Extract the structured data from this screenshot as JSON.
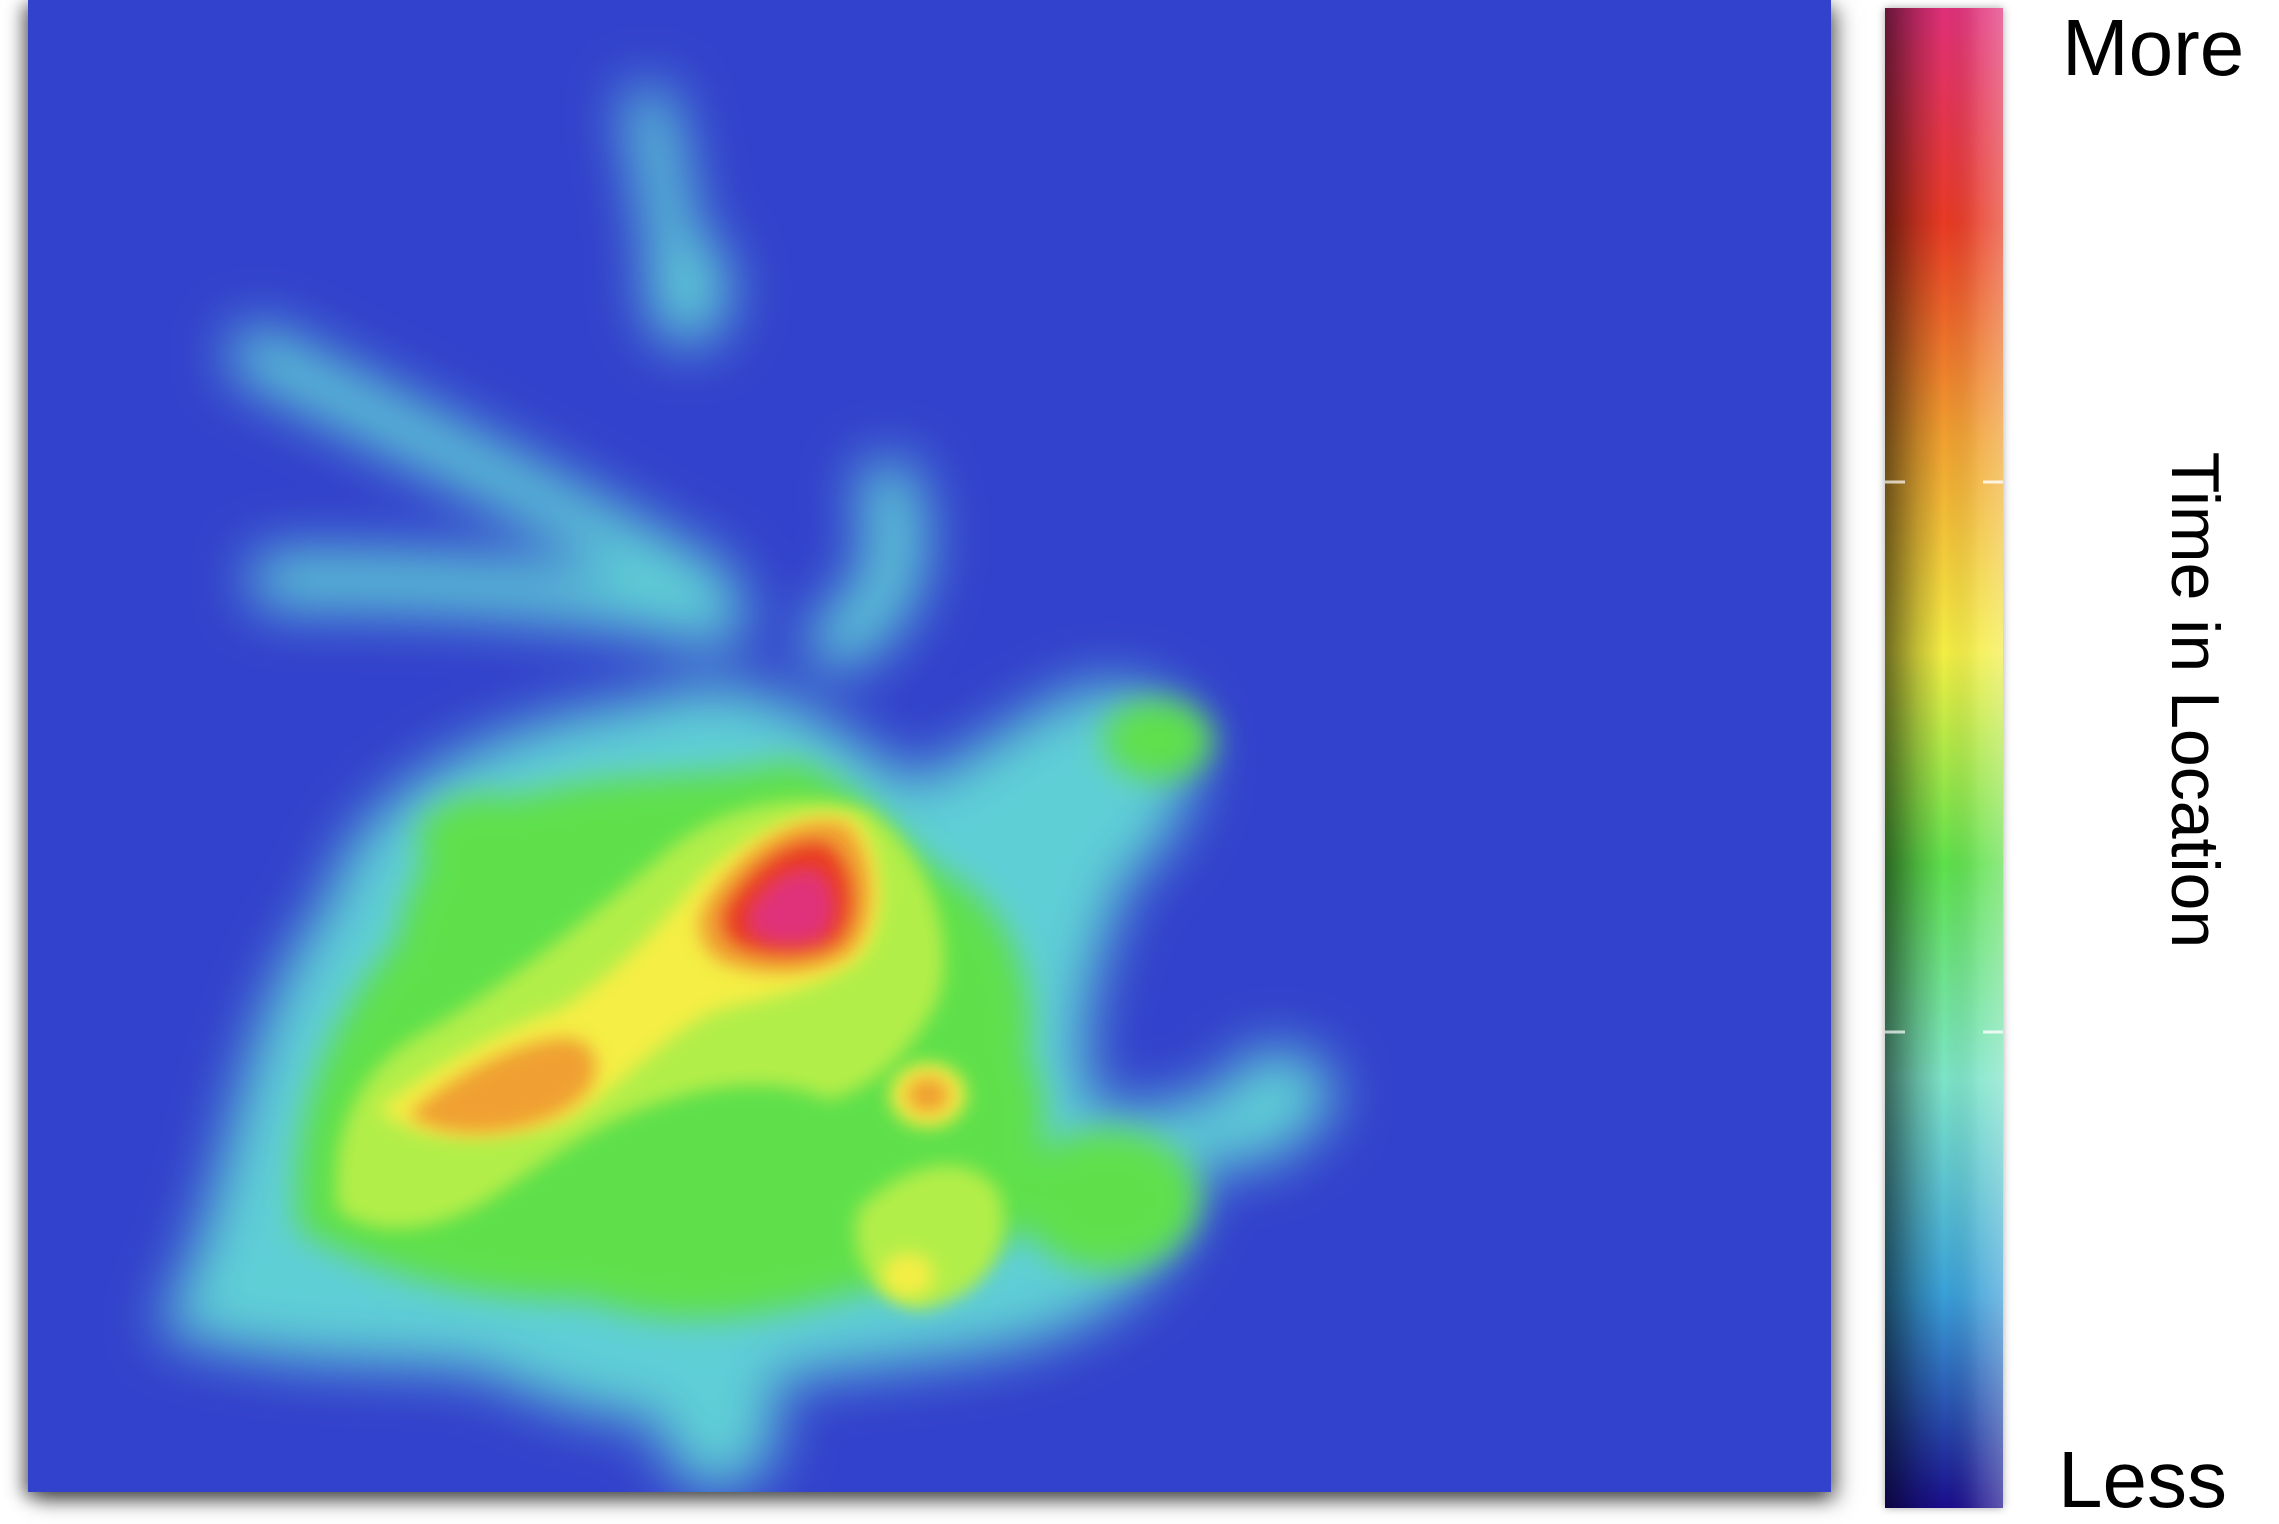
{
  "chart_data": {
    "type": "heatmap",
    "title": "",
    "colorbar": {
      "label": "Time in Location",
      "max_label": "More",
      "min_label": "Less",
      "colormap": [
        "#1a0d8c",
        "#3aa0d8",
        "#7de4c8",
        "#5ee04c",
        "#f4ee44",
        "#f0a030",
        "#e83a24",
        "#e0307a"
      ]
    },
    "background_color": "#3342cc",
    "value_scale": "relative",
    "hotspot": {
      "x": 0.33,
      "y": 0.61,
      "level": 1.0
    }
  }
}
